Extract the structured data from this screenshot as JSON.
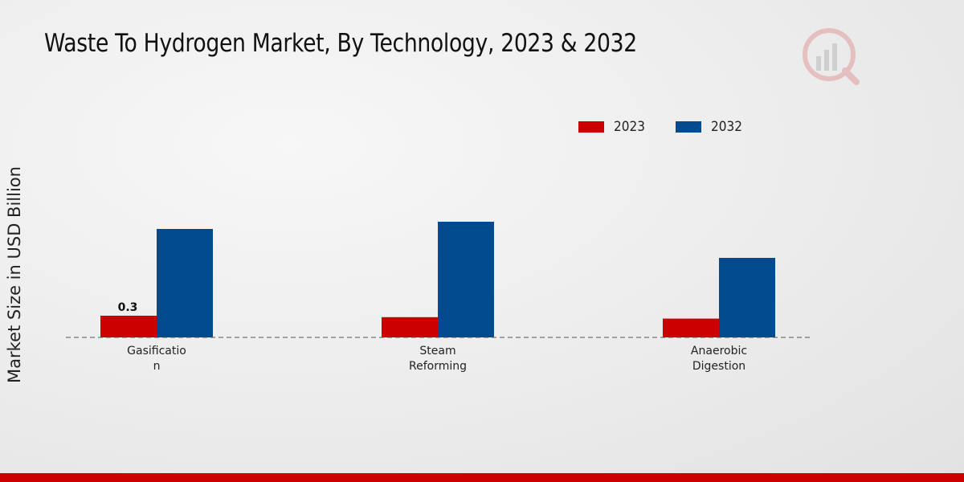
{
  "header": {
    "title": "Waste To Hydrogen Market, By Technology, 2023 & 2032"
  },
  "colors": {
    "series_2023": "#cc0000",
    "series_2032": "#004a8d",
    "footer": "#cc0000"
  },
  "logo": {
    "icon": "market-research-logo-icon"
  },
  "chart_data": {
    "type": "bar",
    "title": "Waste To Hydrogen Market, By Technology, 2023 & 2032",
    "xlabel": "",
    "ylabel": "Market Size in USD Billion",
    "categories": [
      [
        "Gasificatio",
        "n"
      ],
      [
        "Steam",
        "Reforming"
      ],
      [
        "Anaerobic",
        "Digestion"
      ]
    ],
    "series": [
      {
        "name": "2023",
        "color": "#cc0000",
        "values": [
          0.3,
          0.28,
          0.26
        ]
      },
      {
        "name": "2032",
        "color": "#004a8d",
        "values": [
          1.5,
          1.6,
          1.1
        ]
      }
    ],
    "data_labels": [
      {
        "series": 0,
        "index": 0,
        "text": "0.3"
      }
    ],
    "ylim": [
      0,
      3.0
    ],
    "grid": false,
    "legend": "top-right",
    "baseline": "dashed"
  }
}
